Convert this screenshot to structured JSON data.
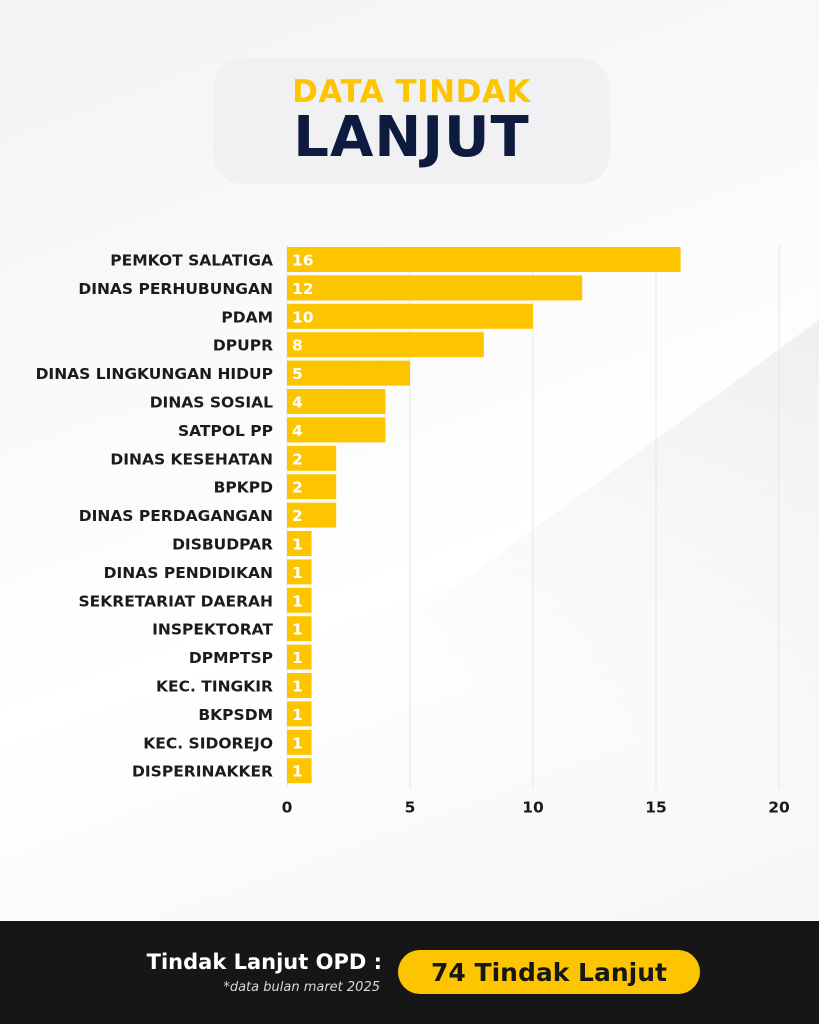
{
  "header": {
    "title_top": "DATA TINDAK",
    "title_main": "LANJUT"
  },
  "colors": {
    "accent": "#FDC500",
    "title_dark": "#0D1B3E",
    "footer_bg": "#161616"
  },
  "chart_data": {
    "type": "bar",
    "orientation": "horizontal",
    "categories": [
      "PEMKOT SALATIGA",
      "DINAS PERHUBUNGAN",
      "PDAM",
      "DPUPR",
      "DINAS LINGKUNGAN HIDUP",
      "DINAS SOSIAL",
      "SATPOL PP",
      "DINAS KESEHATAN",
      "BPKPD",
      "DINAS PERDAGANGAN",
      "DISBUDPAR",
      "DINAS PENDIDIKAN",
      "SEKRETARIAT DAERAH",
      "INSPEKTORAT",
      "DPMPTSP",
      "KEC. TINGKIR",
      "BKPSDM",
      "KEC. SIDOREJO",
      "DISPERINAKKER"
    ],
    "values": [
      16,
      12,
      10,
      8,
      5,
      4,
      4,
      2,
      2,
      2,
      1,
      1,
      1,
      1,
      1,
      1,
      1,
      1,
      1
    ],
    "xlim": [
      0,
      20
    ],
    "xticks": [
      "0",
      "5",
      "10",
      "15",
      "20"
    ],
    "grid": true,
    "data_labels": true
  },
  "footer": {
    "label": "Tindak Lanjut OPD :",
    "note": "*data bulan maret 2025",
    "total": "74 Tindak Lanjut"
  }
}
